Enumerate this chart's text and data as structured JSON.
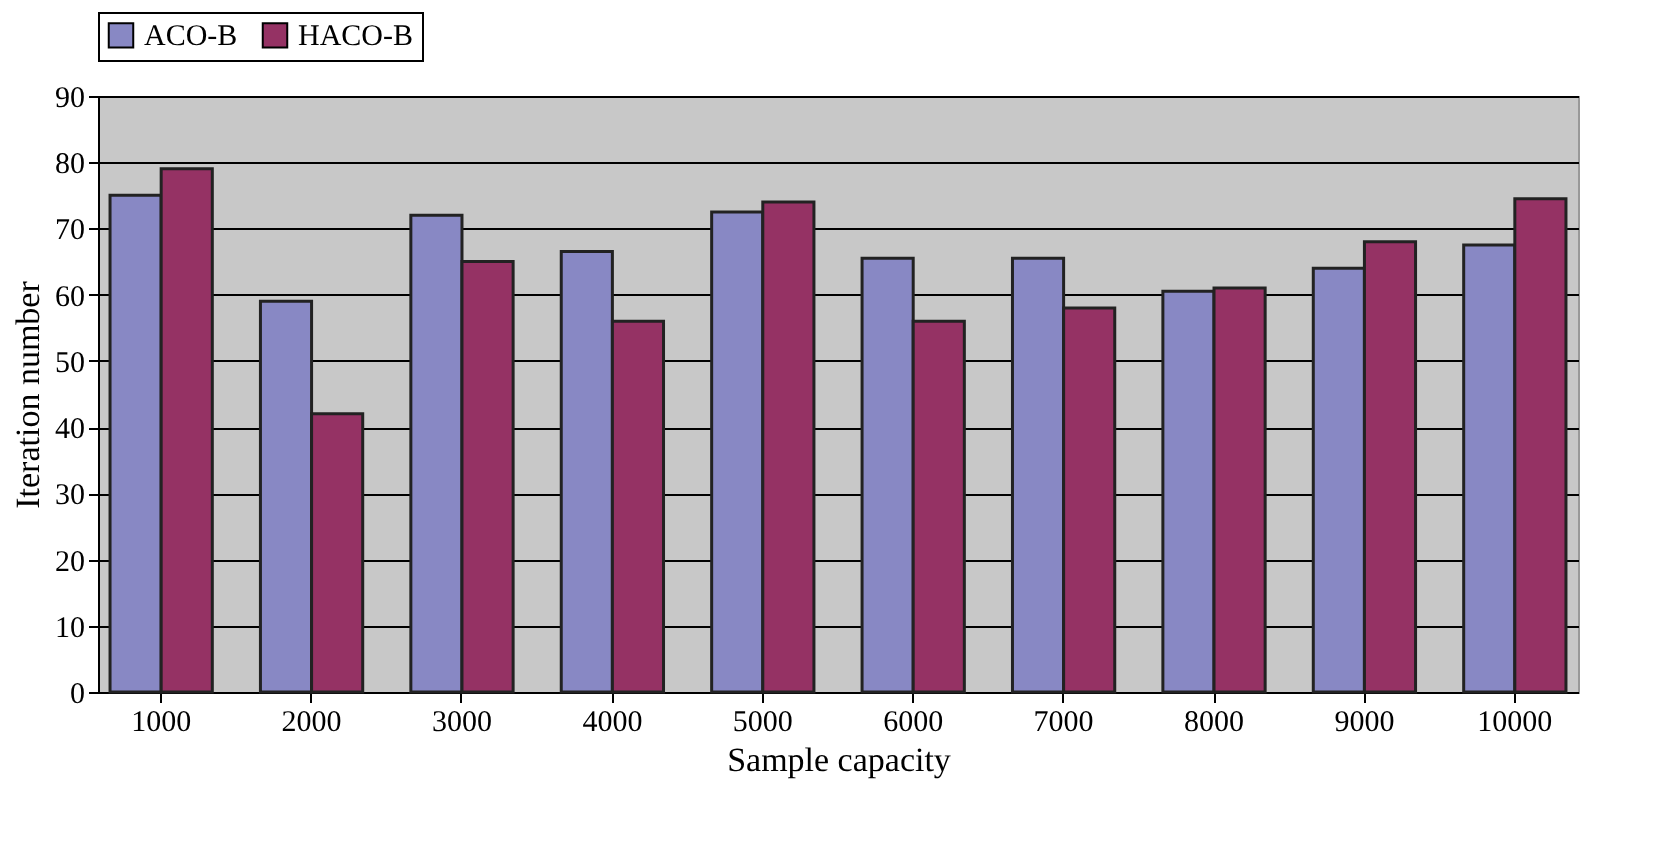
{
  "chart_data": {
    "type": "bar",
    "xlabel": "Sample capacity",
    "ylabel": "Iteration number",
    "categories": [
      "1000",
      "2000",
      "3000",
      "4000",
      "5000",
      "6000",
      "7000",
      "8000",
      "9000",
      "10000"
    ],
    "series": [
      {
        "name": "ACO-B",
        "color": "#8888c4",
        "values": [
          75,
          59,
          72,
          66.5,
          72.5,
          65.5,
          65.5,
          60.5,
          64,
          67.5
        ]
      },
      {
        "name": "HACO-B",
        "color": "#953264",
        "values": [
          79,
          42,
          65,
          56,
          74,
          56,
          58,
          61,
          68,
          74.5
        ]
      }
    ],
    "ylim": [
      0,
      90
    ],
    "yticks": [
      0,
      10,
      20,
      30,
      40,
      50,
      60,
      70,
      80,
      90
    ],
    "grid": "y",
    "legend": "top"
  }
}
